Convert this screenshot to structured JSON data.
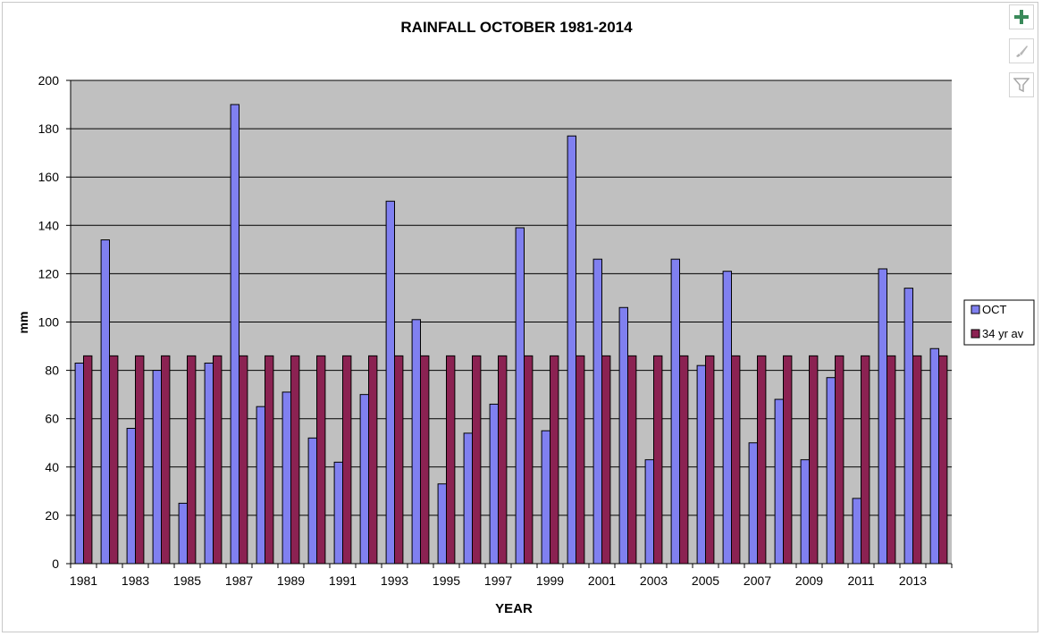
{
  "chart_data": {
    "type": "bar",
    "title": "RAINFALL OCTOBER 1981-2014",
    "xlabel": "YEAR",
    "ylabel": "mm",
    "ylim": [
      0,
      200
    ],
    "yticks": [
      0,
      20,
      40,
      60,
      80,
      100,
      120,
      140,
      160,
      180,
      200
    ],
    "grid": true,
    "legend_position": "right",
    "categories": [
      "1981",
      "1982",
      "1983",
      "1984",
      "1985",
      "1986",
      "1987",
      "1988",
      "1989",
      "1990",
      "1991",
      "1992",
      "1993",
      "1994",
      "1995",
      "1996",
      "1997",
      "1998",
      "1999",
      "2000",
      "2001",
      "2002",
      "2003",
      "2004",
      "2005",
      "2006",
      "2007",
      "2008",
      "2009",
      "2010",
      "2011",
      "2012",
      "2013",
      "2014"
    ],
    "tick_labels": [
      "1981",
      "1983",
      "1985",
      "1987",
      "1989",
      "1991",
      "1993",
      "1995",
      "1997",
      "1999",
      "2001",
      "2003",
      "2005",
      "2007",
      "2009",
      "2011",
      "2013"
    ],
    "series": [
      {
        "name": "OCT",
        "color": "#8080f0",
        "values": [
          83,
          134,
          56,
          80,
          25,
          83,
          190,
          65,
          71,
          52,
          42,
          70,
          150,
          101,
          33,
          54,
          66,
          139,
          55,
          177,
          126,
          106,
          43,
          126,
          82,
          121,
          50,
          68,
          43,
          77,
          27,
          122,
          114,
          89
        ]
      },
      {
        "name": "34 yr av",
        "color": "#8b2252",
        "values": [
          86,
          86,
          86,
          86,
          86,
          86,
          86,
          86,
          86,
          86,
          86,
          86,
          86,
          86,
          86,
          86,
          86,
          86,
          86,
          86,
          86,
          86,
          86,
          86,
          86,
          86,
          86,
          86,
          86,
          86,
          86,
          86,
          86,
          86
        ]
      }
    ]
  },
  "toolbar": {
    "add_icon": "plus-icon",
    "style_icon": "brush-icon",
    "filter_icon": "filter-icon"
  }
}
